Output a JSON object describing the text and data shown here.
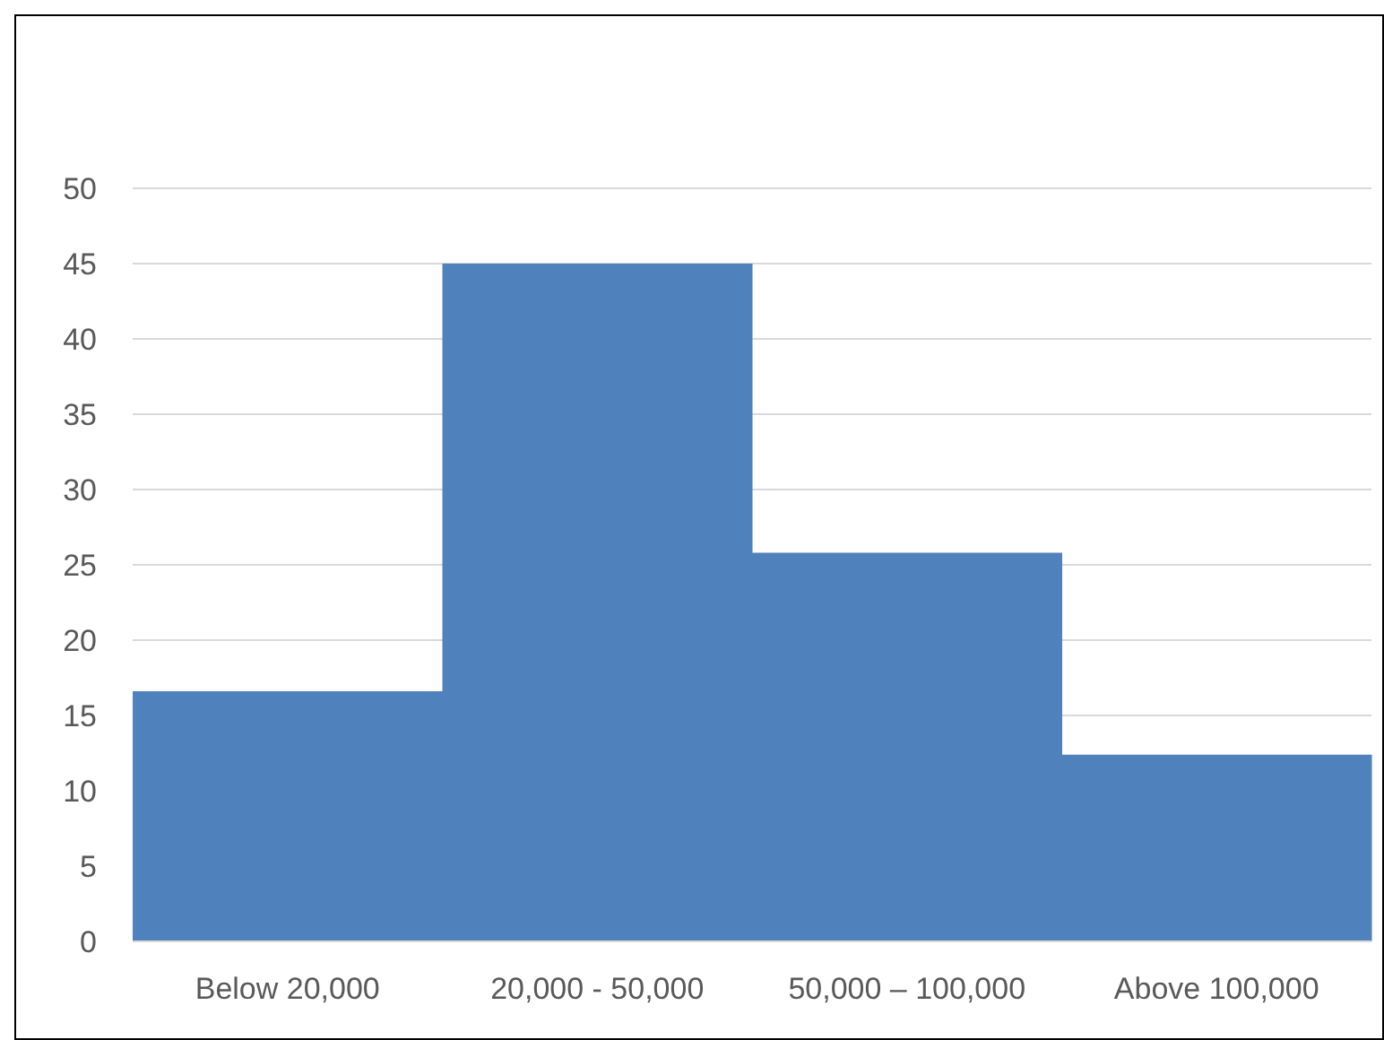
{
  "chart_data": {
    "type": "bar",
    "categories": [
      "Below 20,000",
      "20,000 - 50,000",
      "50,000 – 100,000",
      "Above 100,000"
    ],
    "values": [
      16.6,
      45,
      25.8,
      12.4
    ],
    "color": "#4f81bd",
    "ylim": [
      0,
      50
    ],
    "yticks": [
      0,
      5,
      10,
      15,
      20,
      25,
      30,
      35,
      40,
      45,
      50
    ],
    "grid": "y"
  }
}
